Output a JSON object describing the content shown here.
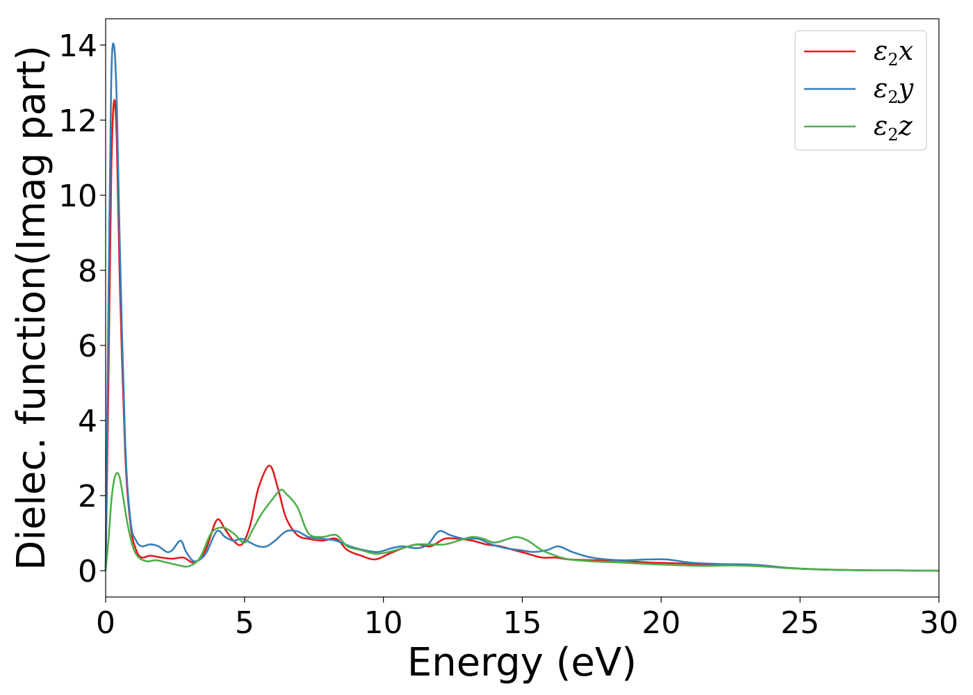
{
  "chart_data": {
    "type": "line",
    "title": "",
    "xlabel": "Energy (eV)",
    "ylabel": "Dielec. function(Imag part)",
    "xlim": [
      0,
      30
    ],
    "ylim": [
      -0.7,
      14.7
    ],
    "xticks": [
      0,
      5,
      10,
      15,
      20,
      25,
      30
    ],
    "yticks": [
      0,
      2,
      4,
      6,
      8,
      10,
      12,
      14
    ],
    "grid": false,
    "legend_position": "top-right",
    "series": [
      {
        "name": "ε2x",
        "legend_base": "ε",
        "legend_sub": "2",
        "legend_tail": "x",
        "color": "#e41a1c",
        "x": [
          0,
          0.1,
          0.2,
          0.3,
          0.4,
          0.5,
          0.7,
          0.9,
          1.1,
          1.3,
          1.6,
          2.0,
          2.4,
          2.8,
          3.2,
          3.6,
          4.0,
          4.3,
          4.6,
          4.9,
          5.2,
          5.5,
          5.9,
          6.2,
          6.5,
          6.9,
          7.3,
          7.8,
          8.3,
          8.7,
          9.2,
          9.7,
          10.2,
          10.7,
          11.2,
          11.7,
          12.2,
          12.7,
          13.2,
          13.7,
          14.2,
          14.7,
          15.2,
          15.7,
          16.2,
          16.7,
          17.5,
          18.5,
          19.5,
          20.5,
          21.5,
          22.5,
          23.5,
          24.5,
          25.5,
          26.5,
          27.5,
          28.5,
          29.5,
          30
        ],
        "y": [
          0,
          5,
          10.5,
          12.5,
          11.5,
          8,
          3.2,
          1.2,
          0.55,
          0.35,
          0.4,
          0.35,
          0.32,
          0.35,
          0.22,
          0.55,
          1.35,
          1.1,
          0.8,
          0.7,
          1.2,
          2.2,
          2.8,
          2.2,
          1.4,
          0.95,
          0.85,
          0.8,
          0.85,
          0.55,
          0.4,
          0.3,
          0.45,
          0.6,
          0.7,
          0.65,
          0.85,
          0.85,
          0.8,
          0.7,
          0.65,
          0.55,
          0.45,
          0.35,
          0.35,
          0.3,
          0.28,
          0.27,
          0.22,
          0.2,
          0.17,
          0.17,
          0.15,
          0.08,
          0.04,
          0.02,
          0.01,
          0.01,
          0,
          0
        ]
      },
      {
        "name": "ε2y",
        "legend_base": "ε",
        "legend_sub": "2",
        "legend_tail": "y",
        "color": "#377eb8",
        "x": [
          0,
          0.1,
          0.2,
          0.3,
          0.4,
          0.5,
          0.7,
          0.9,
          1.1,
          1.3,
          1.6,
          1.9,
          2.2,
          2.4,
          2.7,
          2.9,
          3.2,
          3.6,
          4.0,
          4.3,
          4.6,
          4.9,
          5.2,
          5.5,
          5.8,
          6.1,
          6.5,
          6.9,
          7.3,
          7.8,
          8.3,
          8.8,
          9.3,
          9.8,
          10.3,
          10.7,
          11.2,
          11.6,
          12.0,
          12.4,
          12.9,
          13.4,
          13.9,
          14.4,
          14.9,
          15.4,
          15.9,
          16.3,
          16.8,
          17.5,
          18.5,
          19.5,
          20.2,
          21,
          22,
          23,
          23.5,
          24.5,
          25.5,
          26.5,
          27.5,
          28.5,
          29.5,
          30
        ],
        "y": [
          0,
          7,
          13,
          14,
          12.5,
          9,
          3.5,
          1.3,
          0.8,
          0.65,
          0.7,
          0.65,
          0.5,
          0.55,
          0.8,
          0.5,
          0.25,
          0.45,
          1.05,
          0.9,
          0.8,
          0.85,
          0.75,
          0.65,
          0.65,
          0.8,
          1.05,
          1.05,
          0.9,
          0.85,
          0.8,
          0.65,
          0.55,
          0.5,
          0.6,
          0.65,
          0.6,
          0.7,
          1.05,
          0.95,
          0.85,
          0.85,
          0.7,
          0.6,
          0.55,
          0.5,
          0.55,
          0.65,
          0.5,
          0.35,
          0.28,
          0.3,
          0.3,
          0.22,
          0.18,
          0.17,
          0.15,
          0.08,
          0.04,
          0.02,
          0.01,
          0.01,
          0,
          0
        ]
      },
      {
        "name": "ε2z",
        "legend_base": "ε",
        "legend_sub": "2",
        "legend_tail": "z",
        "color": "#4daf4a",
        "x": [
          0,
          0.1,
          0.2,
          0.3,
          0.4,
          0.5,
          0.6,
          0.8,
          1.0,
          1.2,
          1.5,
          1.8,
          2.2,
          2.6,
          3.0,
          3.4,
          3.8,
          4.2,
          4.6,
          5.0,
          5.3,
          5.6,
          6.0,
          6.3,
          6.5,
          6.9,
          7.3,
          7.8,
          8.3,
          8.7,
          9.2,
          9.7,
          10.2,
          10.7,
          11.2,
          11.7,
          12.2,
          12.7,
          13.2,
          13.6,
          14.0,
          14.5,
          14.8,
          15.2,
          15.7,
          16.2,
          16.7,
          17.5,
          18.5,
          19.5,
          20.5,
          21.5,
          22.5,
          23.5,
          24.5,
          25.5,
          26.5,
          27.5,
          28.5,
          29.5,
          30
        ],
        "y": [
          0,
          0.8,
          1.8,
          2.4,
          2.6,
          2.5,
          2.1,
          1.2,
          0.6,
          0.35,
          0.25,
          0.28,
          0.22,
          0.15,
          0.12,
          0.35,
          1.0,
          1.15,
          1.0,
          0.75,
          1.1,
          1.5,
          1.9,
          2.15,
          2.05,
          1.7,
          1.0,
          0.9,
          0.95,
          0.65,
          0.55,
          0.45,
          0.5,
          0.6,
          0.7,
          0.7,
          0.7,
          0.8,
          0.9,
          0.85,
          0.75,
          0.85,
          0.9,
          0.8,
          0.55,
          0.4,
          0.3,
          0.25,
          0.22,
          0.18,
          0.15,
          0.13,
          0.14,
          0.12,
          0.07,
          0.04,
          0.02,
          0.01,
          0.01,
          0,
          0
        ]
      }
    ]
  }
}
